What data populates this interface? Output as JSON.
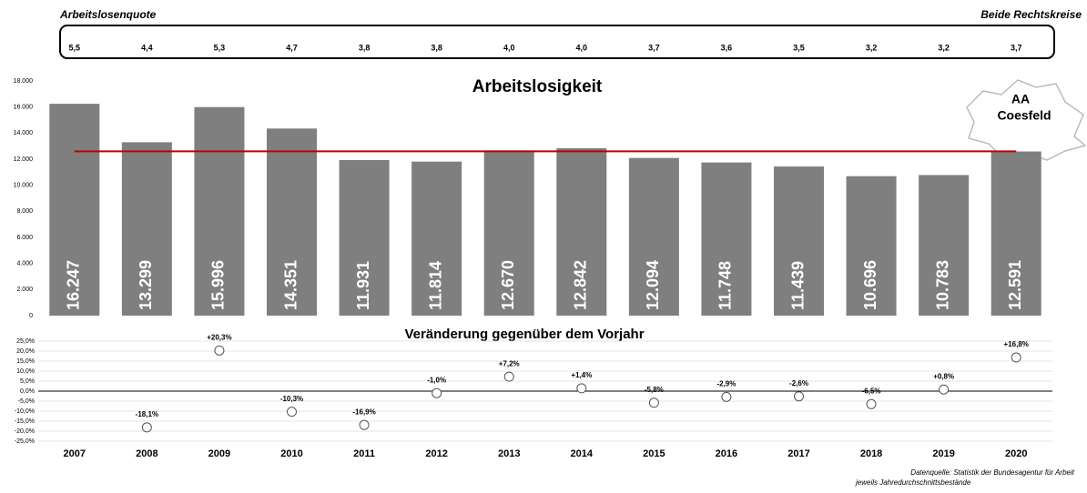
{
  "rate_table": {
    "label": "Arbeitslosenquote",
    "note": "Beide Rechtskreise",
    "values": [
      "5,5",
      "4,4",
      "5,3",
      "4,7",
      "3,8",
      "3,8",
      "4,0",
      "4,0",
      "3,7",
      "3,6",
      "3,5",
      "3,2",
      "3,2",
      "3,7"
    ]
  },
  "chart_data": [
    {
      "type": "bar",
      "title": "Arbeitslosigkeit",
      "categories": [
        "2007",
        "2008",
        "2009",
        "2010",
        "2011",
        "2012",
        "2013",
        "2014",
        "2015",
        "2016",
        "2017",
        "2018",
        "2019",
        "2020"
      ],
      "values": [
        16247,
        13299,
        15996,
        14351,
        11931,
        11814,
        12670,
        12842,
        12094,
        11748,
        11439,
        10696,
        10783,
        12591
      ],
      "value_labels": [
        "16.247",
        "13.299",
        "15.996",
        "14.351",
        "11.931",
        "11.814",
        "12.670",
        "12.842",
        "12.094",
        "11.748",
        "11.439",
        "10.696",
        "10.783",
        "12.591"
      ],
      "color": "#7f7f7f",
      "ylim": [
        0,
        18000
      ],
      "yticks": [
        0,
        {
          "value": 2000,
          "label": "2.000"
        },
        {
          "value": 4000,
          "label": "4.000"
        },
        {
          "value": 6000,
          "label": "6.000"
        },
        {
          "value": 8000,
          "label": "8.000"
        },
        {
          "value": 10000,
          "label": "10.000"
        },
        {
          "value": 12000,
          "label": "12.000"
        },
        {
          "value": 14000,
          "label": "14.000"
        },
        {
          "value": 16000,
          "label": "16.000"
        },
        {
          "value": 18000,
          "label": "18.000"
        }
      ],
      "reference_line": {
        "value": 12600,
        "color": "#c00000"
      }
    },
    {
      "type": "line",
      "title": "Veränderung gegenüber dem Vorjahr",
      "show_line": false,
      "grid": true,
      "values": [
        null,
        -18.1,
        20.3,
        -10.3,
        -16.9,
        -1.0,
        7.2,
        1.4,
        -5.8,
        -2.9,
        -2.6,
        -6.5,
        0.8,
        16.8
      ],
      "value_labels": [
        null,
        "-18,1%",
        "+20,3%",
        "-10,3%",
        "-16,9%",
        "-1,0%",
        "+7,2%",
        "+1,4%",
        "-5,8%",
        "-2,9%",
        "-2,6%",
        "-6,5%",
        "+0,8%",
        "+16,8%"
      ],
      "ylim": [
        -25,
        25
      ],
      "yticks": [
        {
          "value": -25,
          "label": "-25,0%"
        },
        {
          "value": -20,
          "label": "-20,0%"
        },
        {
          "value": -15,
          "label": "-15,0%"
        },
        {
          "value": -10,
          "label": "-10,0%"
        },
        {
          "value": -5,
          "label": "-5,0%"
        },
        {
          "value": 0,
          "label": "0,0%"
        },
        {
          "value": 5,
          "label": "5,0%"
        },
        {
          "value": 10,
          "label": "10,0%"
        },
        {
          "value": 15,
          "label": "15,0%"
        },
        {
          "value": 20,
          "label": "20,0%"
        },
        {
          "value": 25,
          "label": "25,0%"
        }
      ]
    }
  ],
  "badge": {
    "line1": "AA",
    "line2": "Coesfeld"
  },
  "source": [
    "Datenquelle: Statistik der Bundesagentur für Arbeit",
    "jeweils Jahredurchschnittsbestände"
  ]
}
